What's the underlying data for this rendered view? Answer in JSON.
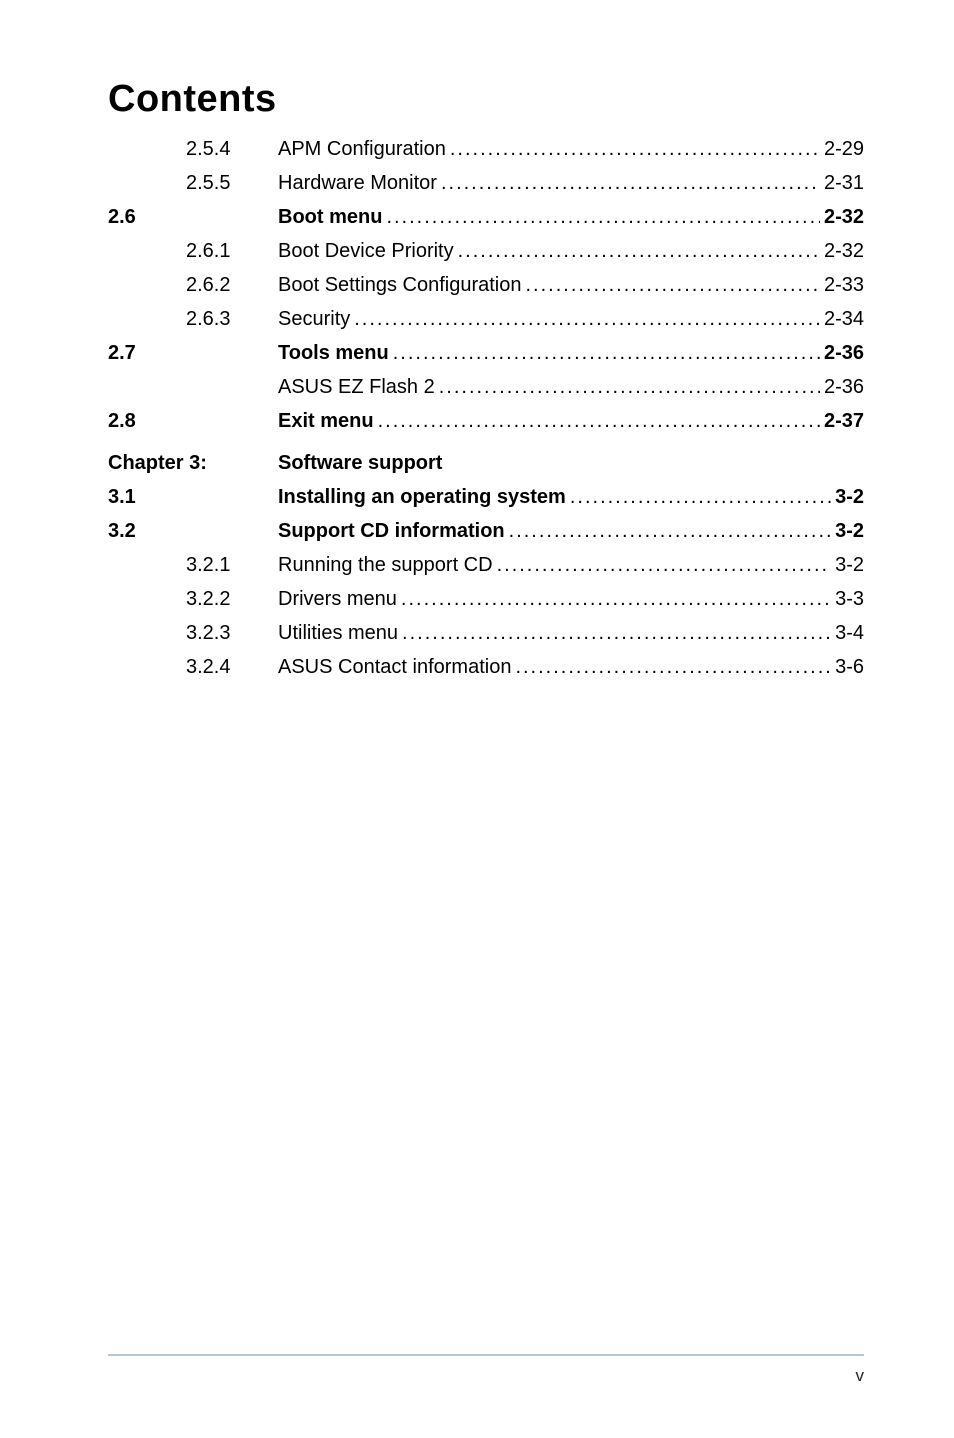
{
  "title": "Contents",
  "rows": [
    {
      "type": "sub",
      "num": "",
      "sub": "2.5.4",
      "label": "APM Configuration",
      "page": "2-29",
      "bold": false
    },
    {
      "type": "sub",
      "num": "",
      "sub": "2.5.5",
      "label": "Hardware Monitor",
      "page": "2-31",
      "bold": false
    },
    {
      "type": "section",
      "num": "2.6",
      "sub": "",
      "label": "Boot menu",
      "page": "2-32",
      "bold": true
    },
    {
      "type": "sub",
      "num": "",
      "sub": "2.6.1",
      "label": "Boot Device Priority",
      "page": "2-32",
      "bold": false
    },
    {
      "type": "sub",
      "num": "",
      "sub": "2.6.2",
      "label": "Boot Settings Configuration",
      "page": "2-33",
      "bold": false
    },
    {
      "type": "sub",
      "num": "",
      "sub": "2.6.3",
      "label": "Security",
      "page": "2-34",
      "bold": false
    },
    {
      "type": "section",
      "num": "2.7",
      "sub": "",
      "label": "Tools menu",
      "page": "2-36",
      "bold": true
    },
    {
      "type": "sub",
      "num": "",
      "sub": "",
      "label": "ASUS EZ Flash 2",
      "page": "2-36",
      "bold": false
    },
    {
      "type": "section",
      "num": "2.8",
      "sub": "",
      "label": "Exit menu",
      "page": "2-37",
      "bold": true
    },
    {
      "type": "chapter",
      "chapter_label": "Chapter 3:",
      "chapter_title": "Software support"
    },
    {
      "type": "section",
      "num": "3.1",
      "sub": "",
      "label": "Installing an operating system",
      "page": "3-2",
      "bold": true
    },
    {
      "type": "section",
      "num": "3.2",
      "sub": "",
      "label": "Support CD information",
      "page": "3-2",
      "bold": true
    },
    {
      "type": "sub",
      "num": "",
      "sub": "3.2.1",
      "label": "Running the support CD",
      "page": "3-2",
      "bold": false
    },
    {
      "type": "sub",
      "num": "",
      "sub": "3.2.2",
      "label": "Drivers menu",
      "page": "3-3",
      "bold": false
    },
    {
      "type": "sub",
      "num": "",
      "sub": "3.2.3",
      "label": "Utilities menu",
      "page": "3-4",
      "bold": false
    },
    {
      "type": "sub",
      "num": "",
      "sub": "3.2.4",
      "label": "ASUS Contact information",
      "page": "3-6",
      "bold": false
    }
  ],
  "footer_page": "v",
  "colors": {
    "text": "#000000",
    "background": "#ffffff",
    "footer_line": "#b9c6cf"
  },
  "fonts": {
    "title_size_pt": 29,
    "body_size_pt": 15,
    "footer_size_pt": 13
  }
}
